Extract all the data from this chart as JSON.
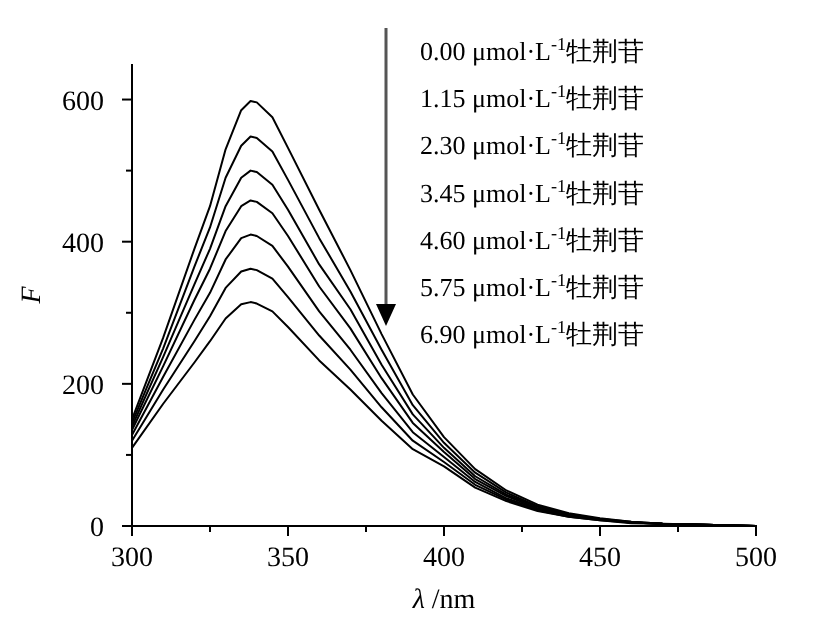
{
  "chart_data": {
    "type": "line",
    "xlabel": "*λ* /nm",
    "ylabel": "*F*",
    "xlim": [
      300,
      500
    ],
    "ylim": [
      0,
      650
    ],
    "xticks": [
      300,
      {
        "value": 325,
        "label": null
      },
      350,
      {
        "value": 375,
        "label": null
      },
      400,
      {
        "value": 425,
        "label": null
      },
      450,
      {
        "value": 475,
        "label": null
      },
      500
    ],
    "yticks": [
      0,
      {
        "value": 100,
        "label": null
      },
      200,
      {
        "value": 300,
        "label": null
      },
      400,
      {
        "value": 500,
        "label": null
      },
      600
    ],
    "grid": false,
    "marker": "none",
    "line_style": "solid",
    "x": [
      300,
      310,
      320,
      325,
      330,
      335,
      338,
      340,
      345,
      350,
      360,
      370,
      380,
      390,
      400,
      410,
      420,
      430,
      440,
      450,
      460,
      470,
      480,
      490,
      500
    ],
    "series": [
      {
        "color": "#000000",
        "values": [
          150,
          265,
          390,
          450,
          530,
          585,
          598,
          596,
          575,
          532,
          445,
          360,
          270,
          185,
          125,
          80,
          50,
          30,
          18,
          11,
          6,
          3,
          2,
          1,
          0
        ]
      },
      {
        "color": "#000000",
        "values": [
          145,
          250,
          365,
          420,
          490,
          535,
          548,
          546,
          527,
          487,
          405,
          330,
          248,
          170,
          117,
          75,
          47,
          28,
          17,
          10,
          6,
          3,
          2,
          1,
          0
        ]
      },
      {
        "color": "#000000",
        "values": [
          140,
          238,
          340,
          390,
          450,
          490,
          500,
          498,
          480,
          445,
          368,
          305,
          227,
          157,
          110,
          70,
          44,
          27,
          16,
          10,
          5,
          3,
          2,
          1,
          0
        ]
      },
      {
        "color": "#000000",
        "values": [
          135,
          225,
          318,
          362,
          415,
          450,
          458,
          456,
          440,
          408,
          337,
          278,
          208,
          145,
          104,
          66,
          42,
          25,
          15,
          9,
          5,
          3,
          2,
          1,
          0
        ]
      },
      {
        "color": "#000000",
        "values": [
          128,
          210,
          290,
          328,
          375,
          405,
          410,
          408,
          394,
          365,
          302,
          248,
          187,
          132,
          97,
          62,
          39,
          24,
          14,
          9,
          5,
          3,
          2,
          1,
          0
        ]
      },
      {
        "color": "#000000",
        "values": [
          120,
          192,
          260,
          295,
          335,
          358,
          362,
          360,
          348,
          322,
          268,
          220,
          167,
          120,
          90,
          58,
          37,
          22,
          13,
          8,
          5,
          3,
          2,
          1,
          0
        ]
      },
      {
        "color": "#000000",
        "values": [
          110,
          172,
          230,
          260,
          292,
          312,
          315,
          313,
          302,
          280,
          233,
          192,
          148,
          108,
          84,
          54,
          35,
          21,
          13,
          8,
          4,
          3,
          2,
          1,
          0
        ]
      }
    ],
    "annotations": [
      "0.00 μmol·L$^{-1}$牡荆苷",
      "1.15 μmol·L$^{-1}$牡荆苷",
      "2.30 μmol·L$^{-1}$牡荆苷",
      "3.45 μmol·L$^{-1}$牡荆苷",
      "4.60 μmol·L$^{-1}$牡荆苷",
      "5.75 μmol·L$^{-1}$牡荆苷",
      "6.90 μmol·L$^{-1}$牡荆苷"
    ]
  }
}
